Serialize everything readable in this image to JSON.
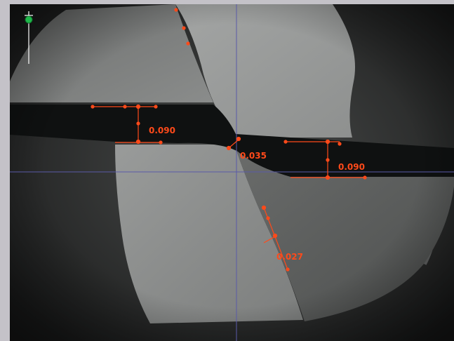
{
  "viewer": {
    "measurements": {
      "top_gap": "0.090",
      "center_offset": "0.035",
      "right_gap": "0.090",
      "edge_angle": "0.027"
    }
  },
  "colors": {
    "annotation": "#ff4a1a",
    "crosshair": "#5a5aa8",
    "frame": "#c4c2c8",
    "marker": "#1fb84a"
  },
  "icons": {
    "origin_marker": "crosshair-pin-icon"
  }
}
